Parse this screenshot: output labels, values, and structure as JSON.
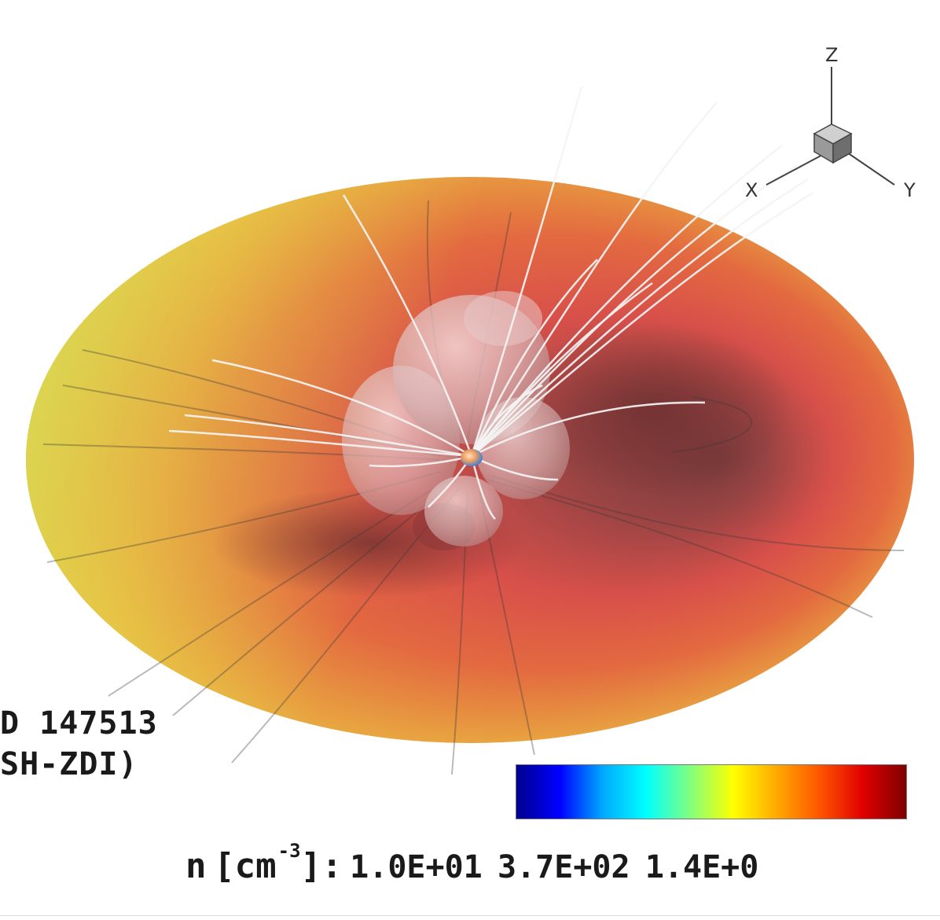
{
  "figure": {
    "caption_lines": [
      "D 147513",
      "SH-ZDI)"
    ]
  },
  "orientation_axes": {
    "labels": [
      "Z",
      "X",
      "Y"
    ]
  },
  "colorbar": {
    "variable": "n",
    "unit_open": "[cm",
    "unit_exponent": "-3",
    "unit_close": "]:",
    "tick_labels": [
      "1.0E+01",
      "3.7E+02",
      "1.4E+0"
    ],
    "colormap": [
      "#00008f",
      "#0000ff",
      "#00aaff",
      "#00ffff",
      "#7fff7f",
      "#ffff00",
      "#ffaa00",
      "#ff5500",
      "#e00000",
      "#800000"
    ]
  },
  "colors": {
    "disk_green_yellow": "#c8e05a",
    "disk_yellow": "#e8d94a",
    "disk_orange": "#e89a3c",
    "disk_red": "#e0524a",
    "disk_dark": "#8a4040"
  }
}
